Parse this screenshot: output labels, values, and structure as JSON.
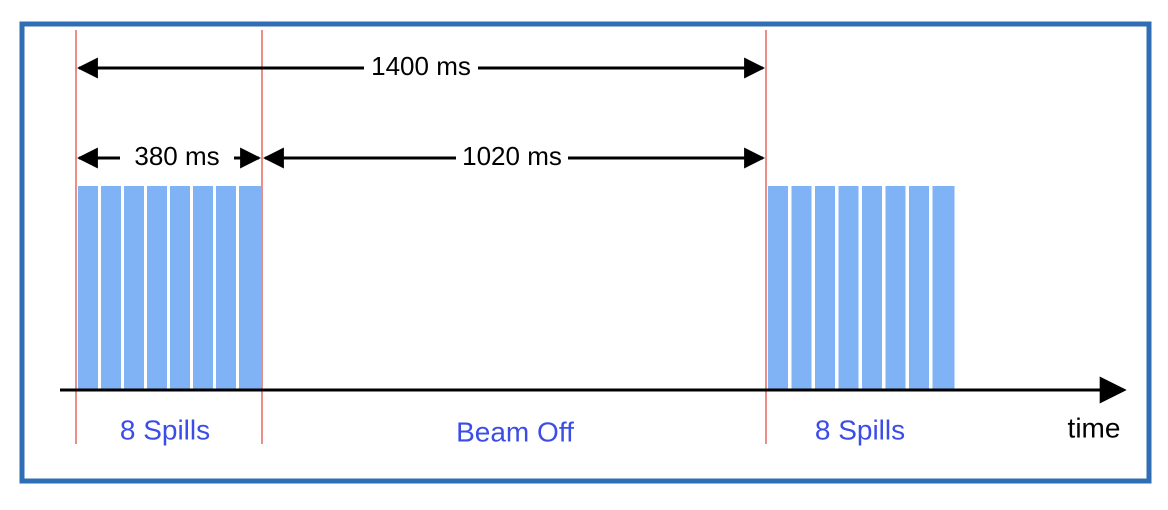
{
  "dimensions": {
    "period": "1400 ms",
    "beam_on": "380 ms",
    "beam_off": "1020 ms"
  },
  "phases": [
    "8 Spills",
    "Beam Off",
    "8 Spills"
  ],
  "axis_label": "time"
}
